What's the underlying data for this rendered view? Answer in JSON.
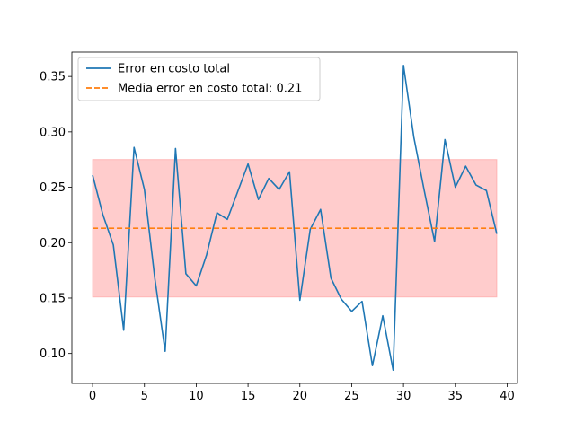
{
  "chart_data": {
    "type": "line",
    "title": "",
    "xlabel": "",
    "ylabel": "",
    "xlim": [
      -2,
      41
    ],
    "ylim": [
      0.073,
      0.372
    ],
    "x_ticks": [
      0,
      5,
      10,
      15,
      20,
      25,
      30,
      35,
      40
    ],
    "y_ticks": [
      0.1,
      0.15,
      0.2,
      0.25,
      0.3,
      0.35
    ],
    "x_tick_labels": [
      "0",
      "5",
      "10",
      "15",
      "20",
      "25",
      "30",
      "35",
      "40"
    ],
    "y_tick_labels": [
      "0.10",
      "0.15",
      "0.20",
      "0.25",
      "0.30",
      "0.35"
    ],
    "grid": false,
    "legend_position": "upper-left",
    "series": [
      {
        "name": "Error en costo total",
        "color": "#1f77b4",
        "style": "solid",
        "x": [
          0,
          1,
          2,
          3,
          4,
          5,
          6,
          7,
          8,
          9,
          10,
          11,
          12,
          13,
          14,
          15,
          16,
          17,
          18,
          19,
          20,
          21,
          22,
          23,
          24,
          25,
          26,
          27,
          28,
          29,
          30,
          31,
          32,
          33,
          34,
          35,
          36,
          37,
          38,
          39
        ],
        "values": [
          0.261,
          0.225,
          0.198,
          0.121,
          0.286,
          0.248,
          0.168,
          0.102,
          0.285,
          0.172,
          0.161,
          0.189,
          0.227,
          0.221,
          0.246,
          0.271,
          0.239,
          0.258,
          0.248,
          0.264,
          0.148,
          0.212,
          0.23,
          0.168,
          0.149,
          0.138,
          0.147,
          0.089,
          0.134,
          0.085,
          0.36,
          0.295,
          0.247,
          0.201,
          0.293,
          0.25,
          0.269,
          0.252,
          0.247,
          0.208
        ]
      },
      {
        "name": "Media error en costo total: 0.21",
        "color": "#ff7f0e",
        "style": "dashed",
        "x": [
          0,
          39
        ],
        "values": [
          0.213,
          0.213
        ]
      }
    ],
    "band": {
      "x": [
        0,
        39
      ],
      "y_low": 0.151,
      "y_high": 0.275,
      "color": "#ff9999"
    }
  }
}
